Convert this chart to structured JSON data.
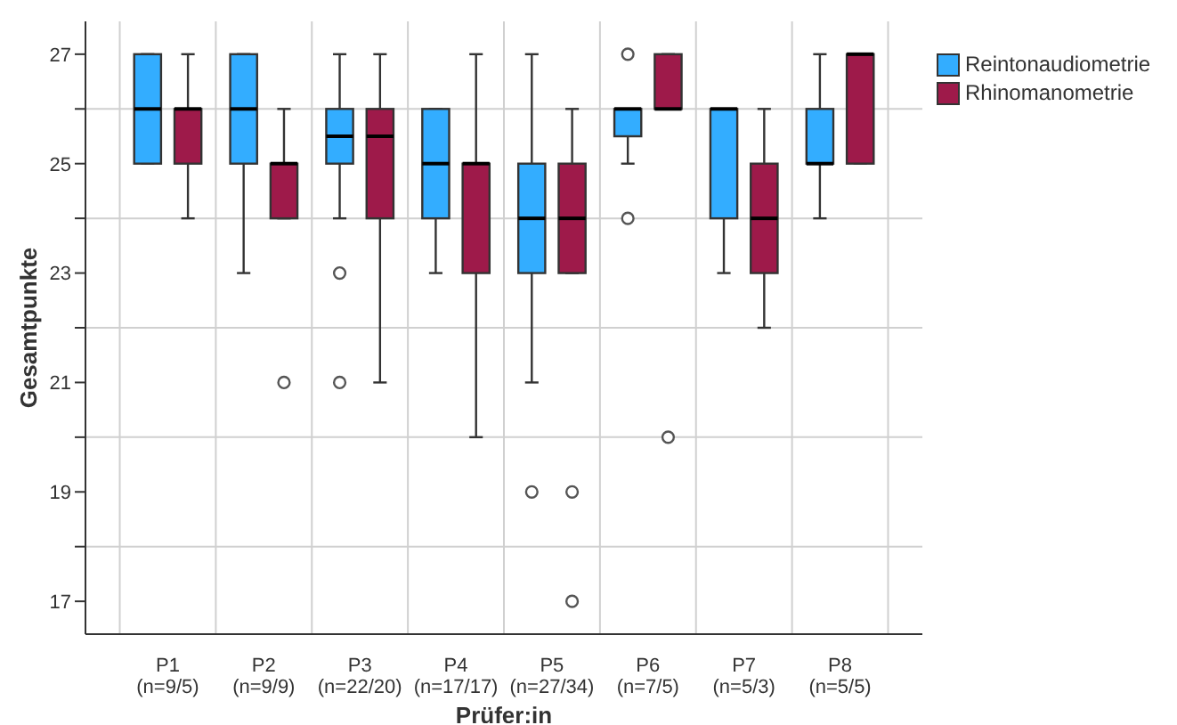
{
  "chart_data": {
    "type": "box",
    "xlabel": "Prüfer:in",
    "ylabel": "Gesamtpunkte",
    "categories": [
      "P1\n(n=9/5)",
      "P2\n(n=9/9)",
      "P3\n(n=22/20)",
      "P4\n(n=17/17)",
      "P5\n(n=27/34)",
      "P6\n(n=7/5)",
      "P7\n(n=5/3)",
      "P8\n(n=5/5)"
    ],
    "ylim": [
      16.4,
      27.6
    ],
    "yticks": [
      17,
      {
        "value": 18,
        "label": null
      },
      19,
      {
        "value": 20,
        "label": null
      },
      21,
      {
        "value": 22,
        "label": null
      },
      23,
      {
        "value": 24,
        "label": null
      },
      25,
      {
        "value": 26,
        "label": null
      },
      27
    ],
    "grid": true,
    "legend": "top right",
    "marker": "circle",
    "series": [
      {
        "name": "Reintonaudiometrie",
        "color": "#33adff",
        "boxes": [
          {
            "low": 25,
            "q1": 25,
            "median": 26,
            "q3": 27,
            "high": 27
          },
          {
            "low": 23,
            "q1": 25,
            "median": 26,
            "q3": 27,
            "high": 27
          },
          {
            "low": 24,
            "q1": 25,
            "median": 25.5,
            "q3": 26,
            "high": 27,
            "outliers": [
              23,
              21
            ]
          },
          {
            "low": 23,
            "q1": 24,
            "median": 25,
            "q3": 26,
            "high": 26
          },
          {
            "low": 21,
            "q1": 23,
            "median": 24,
            "q3": 25,
            "high": 27,
            "outliers": [
              19
            ]
          },
          {
            "low": 25,
            "q1": 25.5,
            "median": 26,
            "q3": 26,
            "high": 26,
            "outliers": [
              27,
              24
            ]
          },
          {
            "low": 23,
            "q1": 24,
            "median": 26,
            "q3": 26,
            "high": 26
          },
          {
            "low": 24,
            "q1": 25,
            "median": 25,
            "q3": 26,
            "high": 27
          }
        ]
      },
      {
        "name": "Rhinomanometrie",
        "color": "#9e1a4a",
        "boxes": [
          {
            "low": 24,
            "q1": 25,
            "median": 26,
            "q3": 26,
            "high": 27
          },
          {
            "low": 24,
            "q1": 24,
            "median": 25,
            "q3": 25,
            "high": 26,
            "outliers": [
              21
            ]
          },
          {
            "low": 21,
            "q1": 24,
            "median": 25.5,
            "q3": 26,
            "high": 27
          },
          {
            "low": 20,
            "q1": 23,
            "median": 25,
            "q3": 25,
            "high": 27
          },
          {
            "low": 23,
            "q1": 23,
            "median": 24,
            "q3": 25,
            "high": 26,
            "outliers": [
              19,
              17
            ]
          },
          {
            "low": 26,
            "q1": 26,
            "median": 26,
            "q3": 27,
            "high": 27,
            "outliers": [
              20
            ]
          },
          {
            "low": 22,
            "q1": 23,
            "median": 24,
            "q3": 25,
            "high": 26
          },
          {
            "low": 25,
            "q1": 25,
            "median": 27,
            "q3": 27,
            "high": 27
          }
        ]
      }
    ]
  }
}
